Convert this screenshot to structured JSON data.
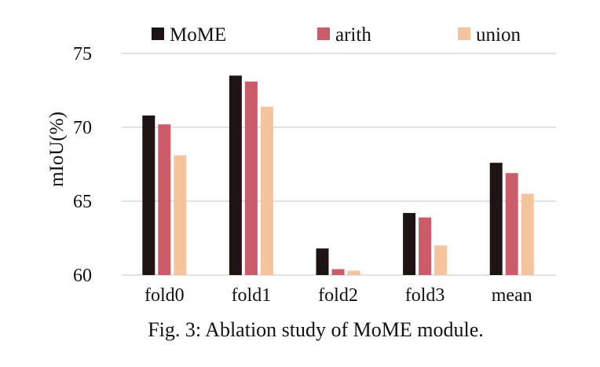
{
  "chart_data": {
    "type": "bar",
    "categories": [
      "fold0",
      "fold1",
      "fold2",
      "fold3",
      "mean"
    ],
    "series": [
      {
        "name": "MoME",
        "color": "#1e1414",
        "values": [
          70.8,
          73.5,
          61.8,
          64.2,
          67.6
        ]
      },
      {
        "name": "arith",
        "color": "#cd5c6a",
        "values": [
          70.2,
          73.1,
          60.4,
          63.9,
          66.9
        ]
      },
      {
        "name": "union",
        "color": "#f5c39c",
        "values": [
          68.1,
          71.4,
          60.3,
          62.0,
          65.5
        ]
      }
    ],
    "ylabel": "mIoU(%)",
    "ylim": [
      60,
      75
    ],
    "yticks": [
      60,
      65,
      70,
      75
    ],
    "grid": true,
    "legend_position": "top"
  },
  "caption": "Fig. 3: Ablation study of MoME module."
}
